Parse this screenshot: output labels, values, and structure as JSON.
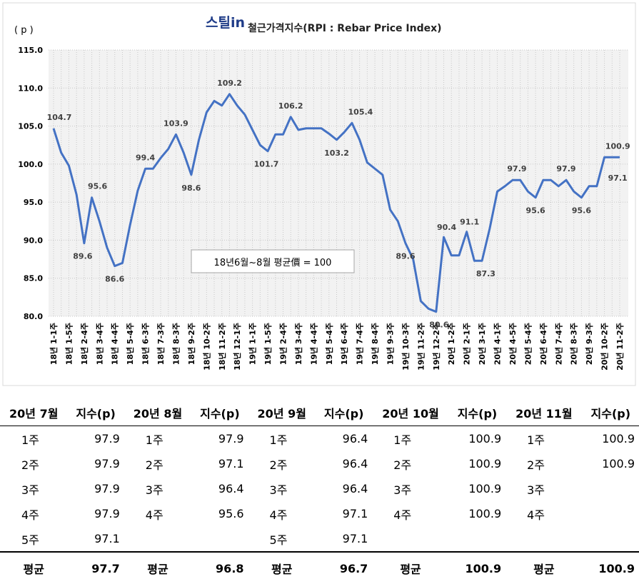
{
  "chart_data": {
    "type": "line",
    "brand": "스틸in",
    "title": "철근가격지수(RPI : Rebar Price Index)",
    "y_label": "( p )",
    "annotation": "18년6월~8월 평균價 = 100",
    "categories": [
      "18년 1-1주",
      null,
      "18년 1-5주",
      null,
      "18년 2-4주",
      null,
      "18년 3-4주",
      null,
      "18년 4-4주",
      null,
      "18년 5-4주",
      null,
      "18년 6-3주",
      null,
      "18년 7-3주",
      null,
      "18년 8-3주",
      null,
      "18년 9-2주",
      null,
      "18년 10-2주",
      null,
      "18년 11-2주",
      null,
      "18년 12-1주",
      null,
      "19년 1-1주",
      null,
      "19년 1-5주",
      null,
      "19년 2-4주",
      null,
      "19년 3-4주",
      null,
      "19년 4-4주",
      null,
      "19년 5-4주",
      null,
      "19년 6-4주",
      null,
      "19년 7-4주",
      null,
      "19년 8-4주",
      null,
      "19년 9-3주",
      null,
      "19년 10-3주",
      null,
      "19년 11-2주",
      null,
      "19년 12-2주",
      null,
      "20년 1-2주",
      null,
      "20년 2-1주",
      null,
      "20년 3-1주",
      null,
      "20년 4-1주",
      null,
      "20년 4-5주",
      null,
      "20년 5-4주",
      null,
      "20년 6-4주",
      null,
      "20년 7-4주",
      null,
      "20년 8-3주",
      null,
      "20년 9-3주",
      null,
      "20년 10-2주",
      null,
      "20년 11-2주"
    ],
    "series": [
      {
        "name": "RPI",
        "color": "#4472c4",
        "values": [
          104.7,
          101.5,
          99.8,
          96,
          89.6,
          95.6,
          92.5,
          89,
          86.6,
          87,
          92,
          96.5,
          99.4,
          99.4,
          100.8,
          102,
          103.9,
          101.5,
          98.6,
          103.2,
          106.8,
          108.3,
          107.7,
          109.2,
          107.7,
          106.5,
          104.5,
          102.5,
          101.7,
          103.9,
          103.9,
          106.2,
          104.5,
          104.7,
          104.7,
          104.7,
          104,
          103.2,
          104.2,
          105.4,
          103.2,
          100.2,
          99.4,
          98.6,
          94,
          92.5,
          89.6,
          87.5,
          82,
          81,
          80.6,
          90.4,
          88,
          88,
          91.1,
          87.3,
          87.3,
          91.5,
          96.4,
          97.1,
          97.9,
          97.9,
          96.4,
          95.6,
          97.9,
          97.9,
          97.1,
          97.9,
          96.4,
          95.6,
          97.1,
          97.1,
          100.9,
          100.9,
          100.9
        ]
      }
    ],
    "ylim": [
      80,
      115
    ],
    "yticks": [
      {
        "value": 80,
        "label": "80.0"
      },
      {
        "value": 85,
        "label": "85.0"
      },
      {
        "value": 90,
        "label": "90.0"
      },
      {
        "value": 95,
        "label": "95.0"
      },
      {
        "value": 100,
        "label": "100.0"
      },
      {
        "value": 105,
        "label": "105.0"
      },
      {
        "value": 110,
        "label": "110.0"
      },
      {
        "value": 115,
        "label": "115.0"
      }
    ],
    "grid": true
  },
  "table": {
    "headers": [
      "20년 7월",
      "지수(p)",
      "20년 8월",
      "지수(p)",
      "20년 9월",
      "지수(p)",
      "20년 10월",
      "지수(p)",
      "20년 11월",
      "지수(p)"
    ],
    "rows": [
      [
        "1주",
        97.9,
        "1주",
        97.9,
        "1주",
        96.4,
        "1주",
        100.9,
        "1주",
        100.9
      ],
      [
        "2주",
        97.9,
        "2주",
        97.1,
        "2주",
        96.4,
        "2주",
        100.9,
        "2주",
        100.9
      ],
      [
        "3주",
        97.9,
        "3주",
        96.4,
        "3주",
        96.4,
        "3주",
        100.9,
        "3주",
        null
      ],
      [
        "4주",
        97.9,
        "4주",
        95.6,
        "4주",
        97.1,
        "4주",
        100.9,
        "4주",
        null
      ],
      [
        "5주",
        97.1,
        null,
        null,
        "5주",
        97.1,
        null,
        null,
        null,
        null
      ]
    ],
    "footer": [
      "평균",
      97.7,
      "평균",
      96.8,
      "평균",
      96.7,
      "평균",
      100.9,
      "평균",
      100.9
    ]
  }
}
